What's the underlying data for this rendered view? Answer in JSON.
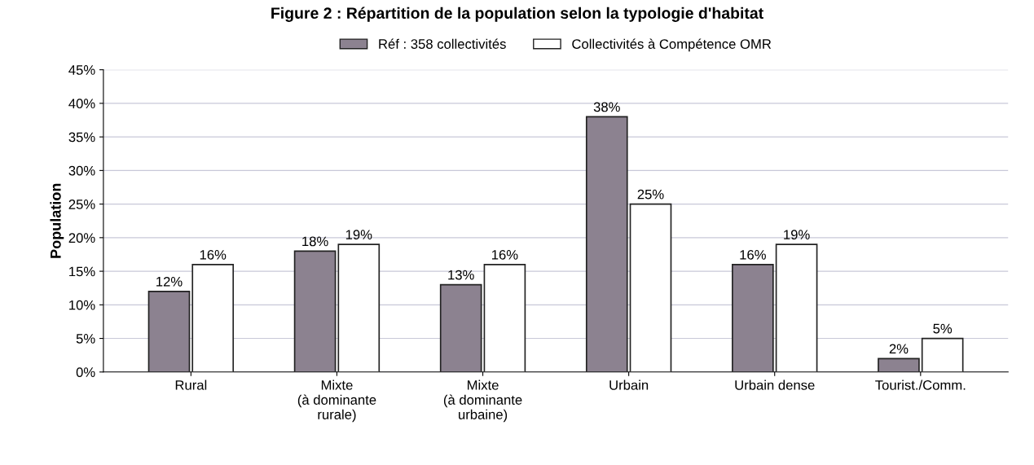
{
  "chart_data": {
    "type": "bar",
    "title": "Figure 2 : Répartition de la population selon la typologie d'habitat",
    "ylabel": "Population",
    "categories": [
      "Rural",
      "Mixte\n(à dominante\nrurale)",
      "Mixte\n(à dominante\nurbaine)",
      "Urbain",
      "Urbain dense",
      "Tourist./Comm."
    ],
    "series": [
      {
        "name": "Réf : 358 collectivités",
        "color": "#8c8290",
        "values": [
          12,
          18,
          13,
          38,
          16,
          2
        ],
        "value_labels": [
          "12%",
          "18%",
          "13%",
          "38%",
          "16%",
          "2%"
        ]
      },
      {
        "name": "Collectivités à Compétence OMR",
        "color": "#ffffff",
        "values": [
          16,
          19,
          16,
          25,
          19,
          5
        ],
        "value_labels": [
          "16%",
          "19%",
          "16%",
          "25%",
          "19%",
          "5%"
        ]
      }
    ],
    "ylim": [
      0,
      45
    ],
    "yticks": [
      {
        "value": 0,
        "label": "0%"
      },
      {
        "value": 5,
        "label": "5%"
      },
      {
        "value": 10,
        "label": "10%"
      },
      {
        "value": 15,
        "label": "15%"
      },
      {
        "value": 20,
        "label": "20%"
      },
      {
        "value": 25,
        "label": "25%"
      },
      {
        "value": 30,
        "label": "30%"
      },
      {
        "value": 35,
        "label": "35%"
      },
      {
        "value": 40,
        "label": "40%"
      },
      {
        "value": 45,
        "label": "45%"
      }
    ],
    "grid": "y",
    "legend": "top"
  }
}
